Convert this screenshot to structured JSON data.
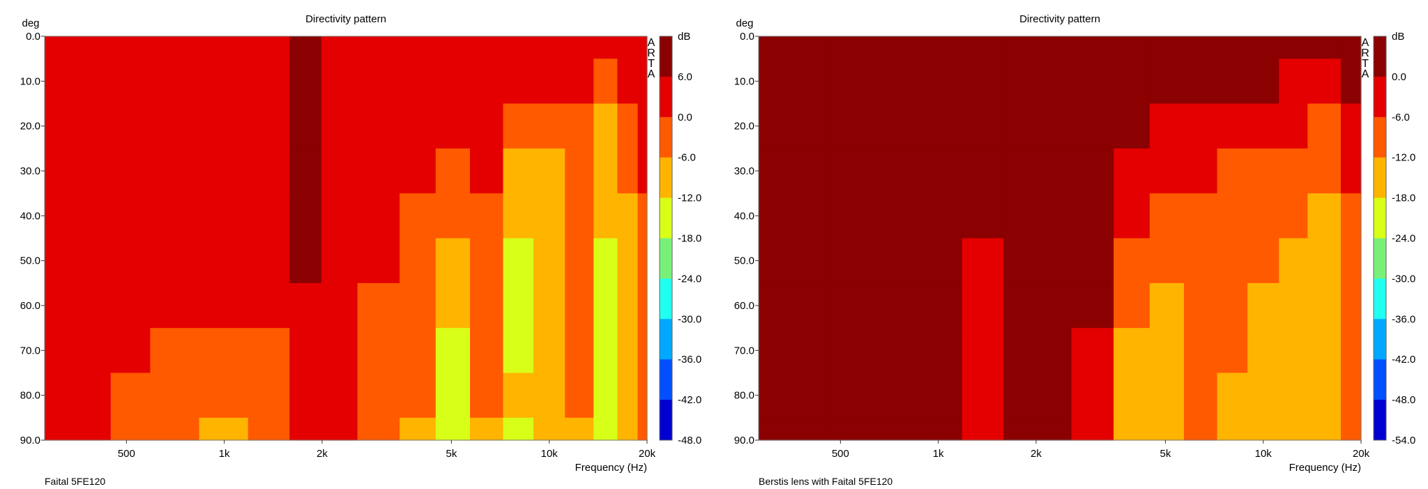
{
  "chart_data": [
    {
      "type": "heatmap",
      "title": "Directivity pattern",
      "xlabel": "Frequency (Hz)",
      "ylabel": "deg",
      "device_label": "Faital 5FE120",
      "watermark": "ARTA",
      "colorbar_unit": "dB",
      "x_scale": "log",
      "xlim": [
        280,
        20000
      ],
      "ylim": [
        0,
        90
      ],
      "x_tick_values": [
        500,
        1000,
        2000,
        5000,
        10000,
        20000
      ],
      "x_tick_labels": [
        "500",
        "1k",
        "2k",
        "5k",
        "10k",
        "20k"
      ],
      "y_tick_labels": [
        "0.0",
        "10.0",
        "20.0",
        "30.0",
        "40.0",
        "50.0",
        "60.0",
        "70.0",
        "80.0",
        "90.0"
      ],
      "colorbar_levels": [
        6.0,
        0.0,
        -6.0,
        -12.0,
        -18.0,
        -24.0,
        -30.0,
        -36.0,
        -42.0,
        -48.0
      ],
      "colorbar_labels": [
        "6.0",
        "0.0",
        "-6.0",
        "-12.0",
        "-18.0",
        "-24.0",
        "-30.0",
        "-36.0",
        "-42.0",
        "-48.0"
      ],
      "colorbar_colors": [
        "#8b0000",
        "#e40000",
        "#ff5a00",
        "#ffb400",
        "#d8ff18",
        "#78f078",
        "#20fff0",
        "#00a8ff",
        "#0050ff",
        "#0000d0"
      ],
      "background_level_color": "#ff5a00",
      "freq_bins": [
        300,
        400,
        500,
        700,
        1000,
        1400,
        1800,
        2200,
        3000,
        4000,
        5000,
        6500,
        8000,
        10000,
        12500,
        15000,
        17500,
        20000
      ],
      "angle_bins": [
        0,
        10,
        20,
        30,
        40,
        50,
        60,
        70,
        80,
        90
      ],
      "level_db": [
        [
          -3,
          -3,
          -4,
          -4,
          -4,
          -4,
          1,
          -2,
          -4,
          -4,
          -4,
          -4,
          -4,
          -3,
          -4,
          -4,
          -3,
          -4
        ],
        [
          -4,
          -2,
          -4,
          -4,
          -4,
          -4,
          1,
          -1,
          -4,
          -4,
          -4,
          -4,
          -4,
          -4,
          -5,
          -8,
          -4,
          -4
        ],
        [
          -4,
          -4,
          -4,
          -4,
          -4,
          -4,
          1,
          -1,
          -4,
          -4,
          -4,
          -4,
          -8,
          -10,
          -8,
          -14,
          -8,
          -6
        ],
        [
          -4,
          -4,
          -4,
          -4,
          -4,
          -4,
          1,
          -1,
          -4,
          -4,
          -8,
          -6,
          -13,
          -14,
          -10,
          -16,
          -9,
          -4
        ],
        [
          -4,
          -4,
          -4,
          -4,
          -4,
          -4,
          1,
          -2,
          -4,
          -8,
          -10,
          -8,
          -15,
          -16,
          -10,
          -17,
          -13,
          -8
        ],
        [
          -4,
          -4,
          -4,
          -4,
          -4,
          -4,
          1,
          -4,
          -5,
          -9,
          -15,
          -9,
          -19,
          -15,
          -10,
          -20,
          -15,
          -8
        ],
        [
          -4,
          -4,
          -4,
          -4,
          -4,
          -4,
          -1,
          -4,
          -7,
          -8,
          -18,
          -9,
          -20,
          -16,
          -10,
          -19,
          -15,
          -9
        ],
        [
          -4,
          -4,
          -4,
          -7,
          -8,
          -7,
          -4,
          -4,
          -8,
          -9,
          -19,
          -9,
          -20,
          -16,
          -11,
          -20,
          -16,
          -9
        ],
        [
          -4,
          -4,
          -7,
          -8,
          -8,
          -8,
          -4,
          -4,
          -9,
          -10,
          -20,
          -10,
          -18,
          -17,
          -12,
          -20,
          -16,
          -9
        ],
        [
          -4,
          -4,
          -9,
          -10,
          -13,
          -8,
          -4,
          -4,
          -10,
          -13,
          -22,
          -13,
          -20,
          -17,
          -13,
          -20,
          -16,
          -11
        ]
      ]
    },
    {
      "type": "heatmap",
      "title": "Directivity pattern",
      "xlabel": "Frequency (Hz)",
      "ylabel": "deg",
      "device_label": "Berstis lens with Faital 5FE120",
      "watermark": "ARTA",
      "colorbar_unit": "dB",
      "x_scale": "log",
      "xlim": [
        280,
        20000
      ],
      "ylim": [
        0,
        90
      ],
      "x_tick_values": [
        500,
        1000,
        2000,
        5000,
        10000,
        20000
      ],
      "x_tick_labels": [
        "500",
        "1k",
        "2k",
        "5k",
        "10k",
        "20k"
      ],
      "y_tick_labels": [
        "0.0",
        "10.0",
        "20.0",
        "30.0",
        "40.0",
        "50.0",
        "60.0",
        "70.0",
        "80.0",
        "90.0"
      ],
      "colorbar_levels": [
        0.0,
        -6.0,
        -12.0,
        -18.0,
        -24.0,
        -30.0,
        -36.0,
        -42.0,
        -48.0,
        -54.0
      ],
      "colorbar_labels": [
        "0.0",
        "-6.0",
        "-12.0",
        "-18.0",
        "-24.0",
        "-30.0",
        "-36.0",
        "-42.0",
        "-48.0",
        "-54.0"
      ],
      "colorbar_colors": [
        "#8b0000",
        "#e40000",
        "#ff5a00",
        "#ffb400",
        "#d8ff18",
        "#78f078",
        "#20fff0",
        "#00a8ff",
        "#0050ff",
        "#0000d0"
      ],
      "background_level_color": "#e40000",
      "freq_bins": [
        300,
        400,
        500,
        700,
        850,
        1000,
        1400,
        1800,
        2200,
        3000,
        4000,
        5000,
        6500,
        8000,
        10000,
        12500,
        15000,
        20000
      ],
      "angle_bins": [
        0,
        10,
        20,
        30,
        40,
        50,
        60,
        70,
        80,
        90
      ],
      "level_db": [
        [
          -3,
          -3,
          -3,
          -3,
          2,
          -3,
          -3,
          1,
          -3,
          -3,
          -3,
          -3,
          -3,
          -3,
          -3,
          -3,
          -3,
          -3
        ],
        [
          -3,
          -3,
          -3,
          -3,
          2,
          -3,
          -3,
          1,
          -3,
          -3,
          -4,
          -3,
          -5,
          -3,
          -6,
          -8,
          -9,
          -6
        ],
        [
          -3,
          -3,
          -3,
          -3,
          2,
          -3,
          -3,
          1,
          -3,
          -3,
          -5,
          -7,
          -8,
          -10,
          -10,
          -12,
          -13,
          -9
        ],
        [
          -3,
          -3,
          -3,
          -3,
          2,
          -3,
          -3,
          1,
          -3,
          -3,
          -7,
          -12,
          -11,
          -14,
          -15,
          -16,
          -17,
          -12
        ],
        [
          -3,
          -3,
          -3,
          -3,
          2,
          -3,
          -3,
          -1,
          -3,
          -3,
          -10,
          -16,
          -15,
          -16,
          -17,
          -18,
          -19,
          -13
        ],
        [
          -3,
          -3,
          -3,
          -3,
          2,
          -3,
          -7,
          -3,
          -3,
          -4,
          -14,
          -18,
          -16,
          -17,
          -18,
          -19,
          -19,
          -14
        ],
        [
          -3,
          -3,
          -3,
          -3,
          2,
          -3,
          -8,
          -4,
          -3,
          -6,
          -16,
          -20,
          -16,
          -18,
          -19,
          -20,
          -19,
          -14
        ],
        [
          -3,
          -3,
          -3,
          -3,
          2,
          -3,
          -9,
          -5,
          -3,
          -8,
          -19,
          -21,
          -17,
          -18,
          -20,
          -21,
          -20,
          -15
        ],
        [
          -3,
          -3,
          -3,
          -3,
          2,
          -3,
          -9,
          -6,
          -3,
          -10,
          -20,
          -22,
          -17,
          -19,
          -20,
          -21,
          -20,
          -15
        ],
        [
          -3,
          -3,
          -3,
          -3,
          2,
          -3,
          -10,
          -6,
          -3,
          -12,
          -22,
          -23,
          -18,
          -19,
          -21,
          -22,
          -21,
          -16
        ]
      ]
    }
  ]
}
